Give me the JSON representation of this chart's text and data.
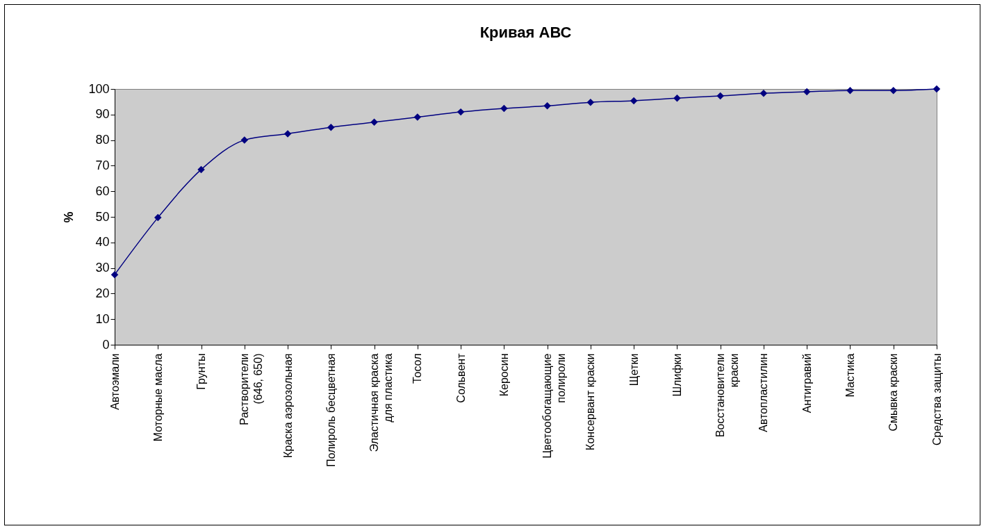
{
  "chart_data": {
    "type": "line",
    "title": "Кривая АВС",
    "ylabel": "%",
    "categories": [
      "Автоэмали",
      "Моторные масла",
      "Грунты",
      "Растворители (646, 650)",
      "Краска аэрозольная",
      "Полироль бесцветная",
      "Эластичная краска для пластика",
      "Тосол",
      "Сольвент",
      "Керосин",
      "Цветообогащающие полироли",
      "Консервант краски",
      "Щетки",
      "Шлифки",
      "Восстановители краски",
      "Автопластилин",
      "Антигравий",
      "Мастика",
      "Смывка краски",
      "Средства защиты"
    ],
    "series": [
      {
        "color": "#000080",
        "values": [
          27.4,
          49.7,
          68.5,
          80,
          82.5,
          85,
          87,
          89,
          91,
          92.4,
          93.4,
          94.8,
          95.4,
          96.4,
          97.3,
          98.3,
          98.9,
          99.4,
          99.4,
          100
        ]
      }
    ],
    "ylim": [
      0,
      100
    ],
    "yticks": [
      0,
      10,
      20,
      30,
      40,
      50,
      60,
      70,
      80,
      90,
      100
    ],
    "marker": "diamond",
    "line_style": "solid",
    "grid": false
  }
}
